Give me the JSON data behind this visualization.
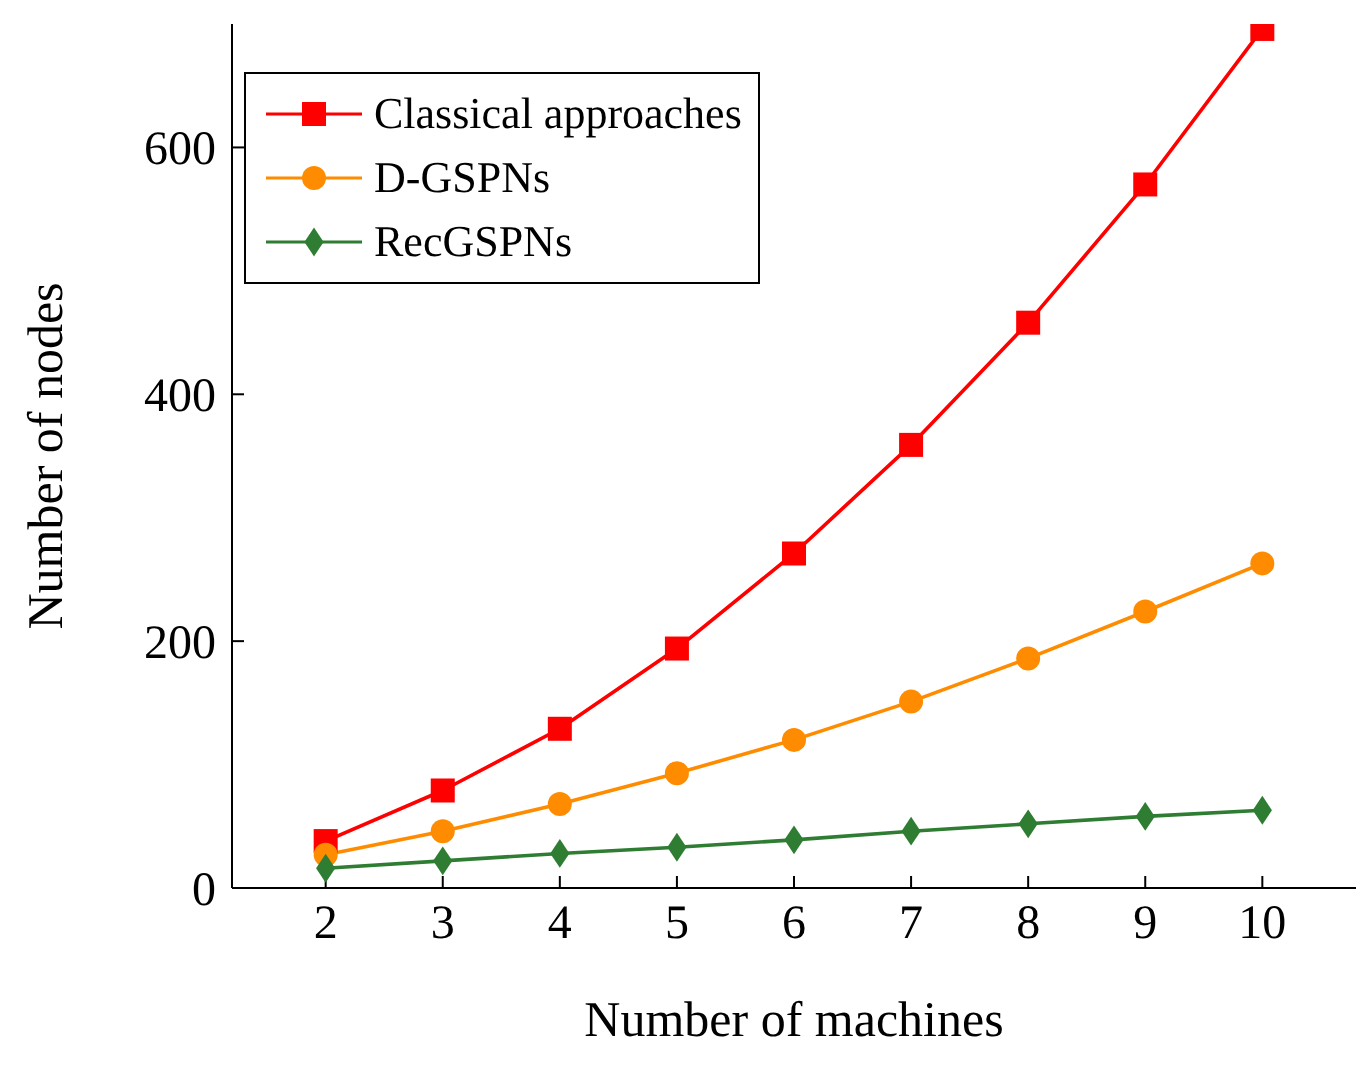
{
  "chart_data": {
    "type": "line",
    "xlabel": "Number of machines",
    "ylabel": "Number of nodes",
    "x": [
      2,
      3,
      4,
      5,
      6,
      7,
      8,
      9,
      10
    ],
    "xlim": [
      1.2,
      10.8
    ],
    "xticks": [
      2,
      3,
      4,
      5,
      6,
      7,
      8,
      9,
      10
    ],
    "ylim": [
      0,
      700
    ],
    "yticks": [
      0,
      200,
      400,
      600
    ],
    "grid": false,
    "legend": "top left",
    "series": [
      {
        "name": "Classical approaches",
        "color": "#ff0000",
        "marker": "square",
        "values": [
          38,
          79,
          129,
          194,
          271,
          359,
          458,
          570,
          696
        ]
      },
      {
        "name": "D-GSPNs",
        "color": "#ff8c00",
        "marker": "circle",
        "values": [
          27,
          46,
          68,
          93,
          120,
          151,
          186,
          224,
          263
        ]
      },
      {
        "name": "RecGSPNs",
        "color": "#2e7d32",
        "marker": "diamond",
        "values": [
          16,
          22,
          28,
          33,
          39,
          46,
          52,
          58,
          63
        ]
      }
    ]
  }
}
